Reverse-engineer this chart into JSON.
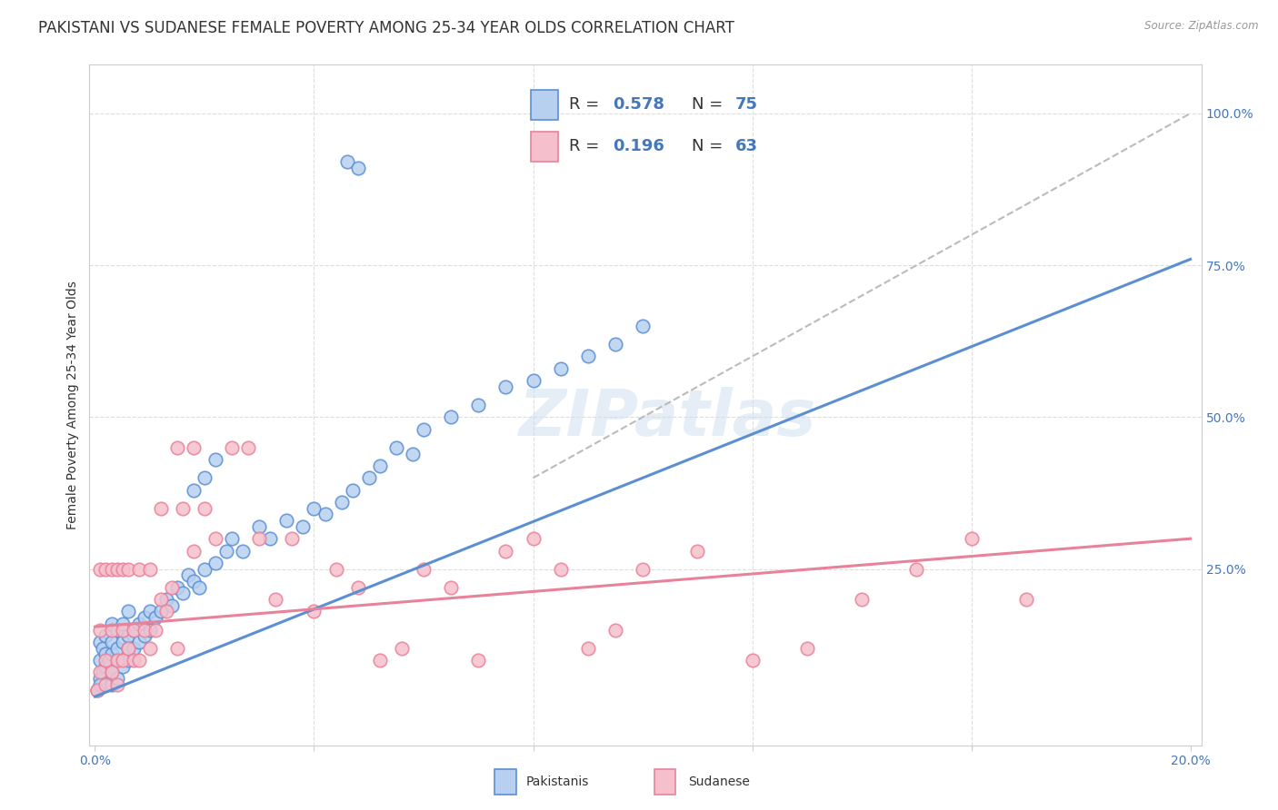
{
  "title": "PAKISTANI VS SUDANESE FEMALE POVERTY AMONG 25-34 YEAR OLDS CORRELATION CHART",
  "source": "Source: ZipAtlas.com",
  "ylabel": "Female Poverty Among 25-34 Year Olds",
  "xlim_min": -0.001,
  "xlim_max": 0.202,
  "ylim_min": -0.04,
  "ylim_max": 1.08,
  "xticks": [
    0.0,
    0.04,
    0.08,
    0.12,
    0.16,
    0.2
  ],
  "xticklabels": [
    "0.0%",
    "",
    "",
    "",
    "",
    "20.0%"
  ],
  "right_yticks": [
    0.25,
    0.5,
    0.75,
    1.0
  ],
  "right_yticklabels": [
    "25.0%",
    "50.0%",
    "75.0%",
    "100.0%"
  ],
  "legend_r1": "0.578",
  "legend_n1": "75",
  "legend_r2": "0.196",
  "legend_n2": "63",
  "blue_color": "#5B8FD4",
  "pink_color": "#E8829A",
  "blue_fill": "#B8D0F0",
  "pink_fill": "#F5C0CC",
  "watermark": "ZIPatlas",
  "pak_x": [
    0.0005,
    0.001,
    0.001,
    0.001,
    0.001,
    0.0015,
    0.0015,
    0.002,
    0.002,
    0.002,
    0.0025,
    0.003,
    0.003,
    0.003,
    0.003,
    0.003,
    0.004,
    0.004,
    0.004,
    0.004,
    0.005,
    0.005,
    0.005,
    0.006,
    0.006,
    0.006,
    0.006,
    0.007,
    0.007,
    0.008,
    0.008,
    0.009,
    0.009,
    0.01,
    0.01,
    0.011,
    0.012,
    0.013,
    0.014,
    0.015,
    0.016,
    0.017,
    0.018,
    0.019,
    0.02,
    0.022,
    0.024,
    0.025,
    0.027,
    0.03,
    0.032,
    0.035,
    0.038,
    0.04,
    0.042,
    0.045,
    0.047,
    0.05,
    0.052,
    0.055,
    0.058,
    0.06,
    0.065,
    0.07,
    0.075,
    0.08,
    0.085,
    0.09,
    0.095,
    0.1,
    0.018,
    0.02,
    0.022,
    0.046,
    0.048
  ],
  "pak_y": [
    0.05,
    0.07,
    0.1,
    0.13,
    0.06,
    0.08,
    0.12,
    0.09,
    0.11,
    0.14,
    0.1,
    0.08,
    0.11,
    0.13,
    0.16,
    0.06,
    0.1,
    0.12,
    0.15,
    0.07,
    0.09,
    0.13,
    0.16,
    0.1,
    0.12,
    0.14,
    0.18,
    0.12,
    0.15,
    0.13,
    0.16,
    0.14,
    0.17,
    0.15,
    0.18,
    0.17,
    0.18,
    0.2,
    0.19,
    0.22,
    0.21,
    0.24,
    0.23,
    0.22,
    0.25,
    0.26,
    0.28,
    0.3,
    0.28,
    0.32,
    0.3,
    0.33,
    0.32,
    0.35,
    0.34,
    0.36,
    0.38,
    0.4,
    0.42,
    0.45,
    0.44,
    0.48,
    0.5,
    0.52,
    0.55,
    0.56,
    0.58,
    0.6,
    0.62,
    0.65,
    0.38,
    0.4,
    0.43,
    0.92,
    0.91
  ],
  "sud_x": [
    0.0005,
    0.001,
    0.001,
    0.001,
    0.002,
    0.002,
    0.002,
    0.003,
    0.003,
    0.003,
    0.004,
    0.004,
    0.004,
    0.005,
    0.005,
    0.005,
    0.006,
    0.006,
    0.007,
    0.007,
    0.008,
    0.008,
    0.009,
    0.01,
    0.01,
    0.011,
    0.012,
    0.013,
    0.014,
    0.015,
    0.016,
    0.018,
    0.02,
    0.022,
    0.025,
    0.028,
    0.03,
    0.033,
    0.036,
    0.04,
    0.044,
    0.048,
    0.052,
    0.056,
    0.06,
    0.065,
    0.07,
    0.075,
    0.08,
    0.085,
    0.09,
    0.095,
    0.1,
    0.11,
    0.12,
    0.13,
    0.14,
    0.15,
    0.16,
    0.17,
    0.012,
    0.015,
    0.018
  ],
  "sud_y": [
    0.05,
    0.25,
    0.08,
    0.15,
    0.1,
    0.25,
    0.06,
    0.15,
    0.08,
    0.25,
    0.1,
    0.25,
    0.06,
    0.25,
    0.1,
    0.15,
    0.12,
    0.25,
    0.1,
    0.15,
    0.25,
    0.1,
    0.15,
    0.12,
    0.25,
    0.15,
    0.2,
    0.18,
    0.22,
    0.12,
    0.35,
    0.28,
    0.35,
    0.3,
    0.45,
    0.45,
    0.3,
    0.2,
    0.3,
    0.18,
    0.25,
    0.22,
    0.1,
    0.12,
    0.25,
    0.22,
    0.1,
    0.28,
    0.3,
    0.25,
    0.12,
    0.15,
    0.25,
    0.28,
    0.1,
    0.12,
    0.2,
    0.25,
    0.3,
    0.2,
    0.35,
    0.45,
    0.45
  ],
  "pak_line_x": [
    0.0,
    0.2
  ],
  "pak_line_y": [
    0.04,
    0.76
  ],
  "sud_line_x": [
    0.0,
    0.2
  ],
  "sud_line_y": [
    0.155,
    0.3
  ],
  "diag_line_x": [
    0.08,
    0.2
  ],
  "diag_line_y": [
    0.4,
    1.0
  ],
  "title_fontsize": 12,
  "axis_label_fontsize": 10,
  "tick_fontsize": 10,
  "legend_fontsize": 13,
  "grid_color": "#DDDDDD",
  "spine_color": "#CCCCCC"
}
